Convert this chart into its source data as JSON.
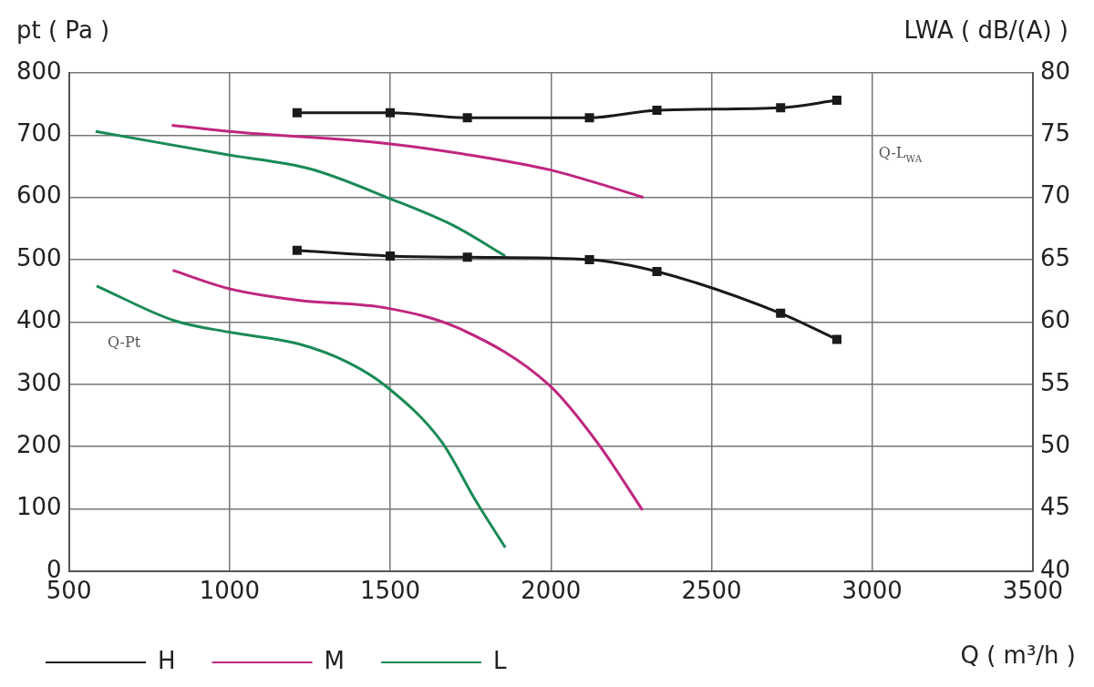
{
  "chart_data": {
    "type": "line",
    "xlabel": "Q ( m³/h )",
    "ylabel": "pt ( Pa )",
    "y2label": "LWA ( dB/(A) )",
    "xlim": [
      500,
      3500
    ],
    "xticks": [
      500,
      1000,
      1500,
      2000,
      2500,
      3000,
      3500
    ],
    "ylim": [
      0,
      800
    ],
    "yticks": [
      0,
      100,
      200,
      300,
      400,
      500,
      600,
      700,
      800
    ],
    "y2lim": [
      40,
      80
    ],
    "y2ticks": [
      40,
      45,
      50,
      55,
      60,
      65,
      70,
      75,
      80
    ],
    "grid": true,
    "legend": "bottom left",
    "series": [
      {
        "name": "H",
        "color": "#1a1a1a",
        "marker": "square",
        "x": [
          1210,
          1500,
          1740,
          2120,
          2330,
          2715,
          2890
        ],
        "values": [
          515,
          506,
          504,
          500,
          481,
          414,
          372
        ]
      },
      {
        "name": "M",
        "color": "#c0267f",
        "x": [
          823,
          995,
          1213,
          1493,
          1713,
          1994,
          2145,
          2285
        ],
        "values": [
          483,
          454,
          435,
          422,
          390,
          299,
          206,
          98
        ]
      },
      {
        "name": "L",
        "color": "#1a8a55",
        "x": [
          586,
          829,
          995,
          1213,
          1369,
          1489,
          1661,
          1766,
          1858
        ],
        "values": [
          458,
          402,
          384,
          365,
          335,
          296,
          207,
          113,
          38
        ]
      },
      {
        "color": "#1a1a1a",
        "marker": "square",
        "axis": "y2",
        "x": [
          1210,
          1500,
          1740,
          2120,
          2330,
          2715,
          2890
        ],
        "values": [
          76.8,
          76.8,
          76.4,
          76.4,
          77.0,
          77.2,
          77.8
        ]
      },
      {
        "color": "#c0267f",
        "axis": "y2",
        "x": [
          820,
          1000,
          1500,
          1750,
          2000,
          2150,
          2288
        ],
        "values": [
          75.8,
          75.3,
          74.3,
          73.4,
          72.2,
          71.1,
          70.0
        ]
      },
      {
        "color": "#1a8a55",
        "axis": "y2",
        "x": [
          583,
          1000,
          1250,
          1500,
          1700,
          1858
        ],
        "values": [
          75.3,
          73.4,
          72.3,
          69.9,
          67.7,
          65.3
        ]
      }
    ],
    "annotations": [
      "Q-Pt",
      "Q-L$_{WA}$"
    ]
  }
}
